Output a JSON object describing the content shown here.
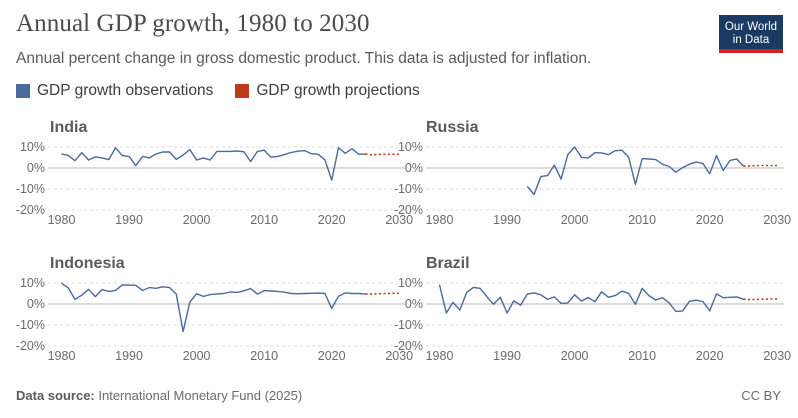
{
  "header": {
    "title": "Annual GDP growth, 1980 to 2030",
    "subtitle": "Annual percent change in gross domestic product. This data is adjusted for inflation."
  },
  "logo": {
    "line1": "Our World",
    "line2": "in Data"
  },
  "legend": {
    "observations_label": "GDP growth observations",
    "projections_label": "GDP growth projections"
  },
  "colors": {
    "observations": "#4c6a9c",
    "projections": "#c0391b",
    "grid": "#dddddd",
    "zero": "#b9b9b9"
  },
  "footer": {
    "source_label": "Data source:",
    "source_text": "International Monetary Fund (2025)",
    "license": "CC BY"
  },
  "chart_data": [
    {
      "type": "line",
      "title": "India",
      "x_range": [
        1978,
        2031
      ],
      "ylim": [
        -20,
        10
      ],
      "y_ticks": [
        "10%",
        "0%",
        "-10%",
        "-20%"
      ],
      "x_ticks": [
        "1980",
        "1990",
        "2000",
        "2010",
        "2020",
        "2030"
      ],
      "series": [
        {
          "name": "GDP growth observations",
          "x": [
            1980,
            1981,
            1982,
            1983,
            1984,
            1985,
            1986,
            1987,
            1988,
            1989,
            1990,
            1991,
            1992,
            1993,
            1994,
            1995,
            1996,
            1997,
            1998,
            1999,
            2000,
            2001,
            2002,
            2003,
            2004,
            2005,
            2006,
            2007,
            2008,
            2009,
            2010,
            2011,
            2012,
            2013,
            2014,
            2015,
            2016,
            2017,
            2018,
            2019,
            2020,
            2021,
            2022,
            2023,
            2024,
            2025
          ],
          "values": [
            6.7,
            6.0,
            3.5,
            7.3,
            3.8,
            5.3,
            4.8,
            4.0,
            9.6,
            5.9,
            5.5,
            1.1,
            5.5,
            4.8,
            6.7,
            7.6,
            7.6,
            4.1,
            6.2,
            8.8,
            3.8,
            4.8,
            3.8,
            7.9,
            7.9,
            7.9,
            8.1,
            7.7,
            3.1,
            7.9,
            8.5,
            5.2,
            5.5,
            6.4,
            7.4,
            8.0,
            8.3,
            6.8,
            6.5,
            3.9,
            -5.8,
            9.7,
            7.0,
            9.2,
            6.5,
            6.6
          ]
        },
        {
          "name": "GDP growth projections",
          "x": [
            2025,
            2026,
            2027,
            2028,
            2029,
            2030
          ],
          "values": [
            6.6,
            6.2,
            6.5,
            6.5,
            6.5,
            6.5
          ]
        }
      ]
    },
    {
      "type": "line",
      "title": "Russia",
      "x_range": [
        1978,
        2031
      ],
      "ylim": [
        -20,
        10
      ],
      "y_ticks": [
        "10%",
        "0%",
        "-10%",
        "-20%"
      ],
      "x_ticks": [
        "1980",
        "1990",
        "2000",
        "2010",
        "2020",
        "2030"
      ],
      "series": [
        {
          "name": "GDP growth observations",
          "x": [
            1993,
            1994,
            1995,
            1996,
            1997,
            1998,
            1999,
            2000,
            2001,
            2002,
            2003,
            2004,
            2005,
            2006,
            2007,
            2008,
            2009,
            2010,
            2011,
            2012,
            2013,
            2014,
            2015,
            2016,
            2017,
            2018,
            2019,
            2020,
            2021,
            2022,
            2023,
            2024,
            2025
          ],
          "values": [
            -8.7,
            -12.6,
            -4.1,
            -3.6,
            1.4,
            -5.3,
            6.4,
            10.0,
            5.1,
            4.7,
            7.3,
            7.2,
            6.4,
            8.2,
            8.5,
            5.2,
            -7.8,
            4.5,
            4.3,
            4.0,
            1.8,
            0.7,
            -2.0,
            0.2,
            1.8,
            2.8,
            2.2,
            -2.7,
            5.9,
            -1.2,
            3.6,
            4.3,
            0.9
          ]
        },
        {
          "name": "GDP growth projections",
          "x": [
            2025,
            2026,
            2027,
            2028,
            2029,
            2030
          ],
          "values": [
            0.9,
            1.0,
            1.2,
            1.2,
            1.2,
            1.2
          ]
        }
      ]
    },
    {
      "type": "line",
      "title": "Indonesia",
      "x_range": [
        1978,
        2031
      ],
      "ylim": [
        -20,
        10
      ],
      "y_ticks": [
        "10%",
        "0%",
        "-10%",
        "-20%"
      ],
      "x_ticks": [
        "1980",
        "1990",
        "2000",
        "2010",
        "2020",
        "2030"
      ],
      "series": [
        {
          "name": "GDP growth observations",
          "x": [
            1980,
            1981,
            1982,
            1983,
            1984,
            1985,
            1986,
            1987,
            1988,
            1989,
            1990,
            1991,
            1992,
            1993,
            1994,
            1995,
            1996,
            1997,
            1998,
            1999,
            2000,
            2001,
            2002,
            2003,
            2004,
            2005,
            2006,
            2007,
            2008,
            2009,
            2010,
            2011,
            2012,
            2013,
            2014,
            2015,
            2016,
            2017,
            2018,
            2019,
            2020,
            2021,
            2022,
            2023,
            2024,
            2025
          ],
          "values": [
            9.9,
            7.6,
            2.2,
            4.2,
            7.0,
            3.5,
            6.9,
            6.0,
            6.5,
            9.1,
            9.0,
            8.9,
            6.5,
            7.8,
            7.5,
            8.2,
            7.8,
            4.7,
            -13.1,
            0.8,
            4.9,
            3.6,
            4.5,
            4.8,
            5.0,
            5.7,
            5.5,
            6.3,
            7.4,
            4.7,
            6.4,
            6.2,
            6.0,
            5.6,
            5.0,
            4.9,
            5.0,
            5.1,
            5.2,
            5.0,
            -2.1,
            3.7,
            5.3,
            5.0,
            5.0,
            4.7
          ]
        },
        {
          "name": "GDP growth projections",
          "x": [
            2025,
            2026,
            2027,
            2028,
            2029,
            2030
          ],
          "values": [
            4.7,
            4.7,
            4.9,
            5.0,
            5.1,
            5.1
          ]
        }
      ]
    },
    {
      "type": "line",
      "title": "Brazil",
      "x_range": [
        1978,
        2031
      ],
      "ylim": [
        -20,
        10
      ],
      "y_ticks": [
        "10%",
        "0%",
        "-10%",
        "-20%"
      ],
      "x_ticks": [
        "1980",
        "1990",
        "2000",
        "2010",
        "2020",
        "2030"
      ],
      "series": [
        {
          "name": "GDP growth observations",
          "x": [
            1980,
            1981,
            1982,
            1983,
            1984,
            1985,
            1986,
            1987,
            1988,
            1989,
            1990,
            1991,
            1992,
            1993,
            1994,
            1995,
            1996,
            1997,
            1998,
            1999,
            2000,
            2001,
            2002,
            2003,
            2004,
            2005,
            2006,
            2007,
            2008,
            2009,
            2010,
            2011,
            2012,
            2013,
            2014,
            2015,
            2016,
            2017,
            2018,
            2019,
            2020,
            2021,
            2022,
            2023,
            2024,
            2025
          ],
          "values": [
            9.2,
            -4.3,
            0.8,
            -2.9,
            5.4,
            7.9,
            7.5,
            3.5,
            -0.1,
            3.2,
            -4.3,
            1.5,
            -0.5,
            4.7,
            5.3,
            4.4,
            2.2,
            3.4,
            0.3,
            0.5,
            4.4,
            1.4,
            3.1,
            1.1,
            5.8,
            3.2,
            4.0,
            6.1,
            5.1,
            -0.1,
            7.5,
            4.0,
            1.9,
            3.0,
            0.5,
            -3.5,
            -3.3,
            1.3,
            1.8,
            1.2,
            -3.3,
            4.8,
            3.0,
            3.2,
            3.4,
            2.3
          ]
        },
        {
          "name": "GDP growth projections",
          "x": [
            2025,
            2026,
            2027,
            2028,
            2029,
            2030
          ],
          "values": [
            2.3,
            2.1,
            2.2,
            2.3,
            2.4,
            2.5
          ]
        }
      ]
    }
  ]
}
